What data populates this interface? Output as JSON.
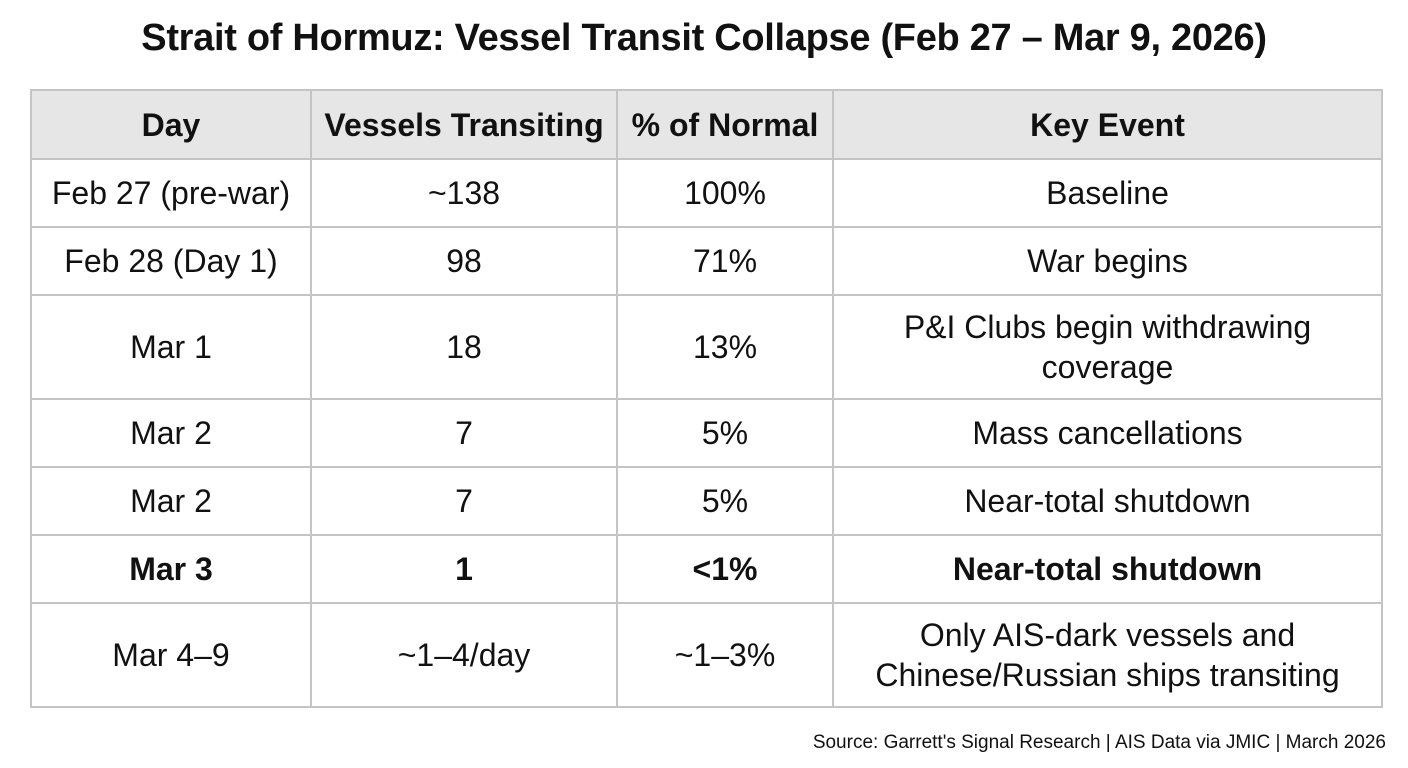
{
  "title": "Strait of Hormuz: Vessel Transit Collapse (Feb 27 – Mar 9, 2026)",
  "table": {
    "headers": [
      "Day",
      "Vessels Transiting",
      "% of Normal",
      "Key Event"
    ],
    "rows": [
      {
        "day": "Feb 27 (pre-war)",
        "vessels": "~138",
        "percent": "100%",
        "event": "Baseline",
        "bold": false
      },
      {
        "day": "Feb 28 (Day 1)",
        "vessels": "98",
        "percent": "71%",
        "event": "War begins",
        "bold": false
      },
      {
        "day": "Mar 1",
        "vessels": "18",
        "percent": "13%",
        "event": "P&I Clubs begin withdrawing coverage",
        "bold": false
      },
      {
        "day": "Mar 2",
        "vessels": "7",
        "percent": "5%",
        "event": "Mass cancellations",
        "bold": false
      },
      {
        "day": "Mar 2",
        "vessels": "7",
        "percent": "5%",
        "event": "Near-total shutdown",
        "bold": false
      },
      {
        "day": "Mar 3",
        "vessels": "1",
        "percent": "<1%",
        "event": "Near-total shutdown",
        "bold": true
      },
      {
        "day": "Mar 4–9",
        "vessels": "~1–4/day",
        "percent": "~1–3%",
        "event": "Only AIS-dark vessels and Chinese/Russian ships transiting",
        "bold": false
      }
    ]
  },
  "source": "Source: Garrett's Signal Research | AIS Data via JMIC | March 2026"
}
